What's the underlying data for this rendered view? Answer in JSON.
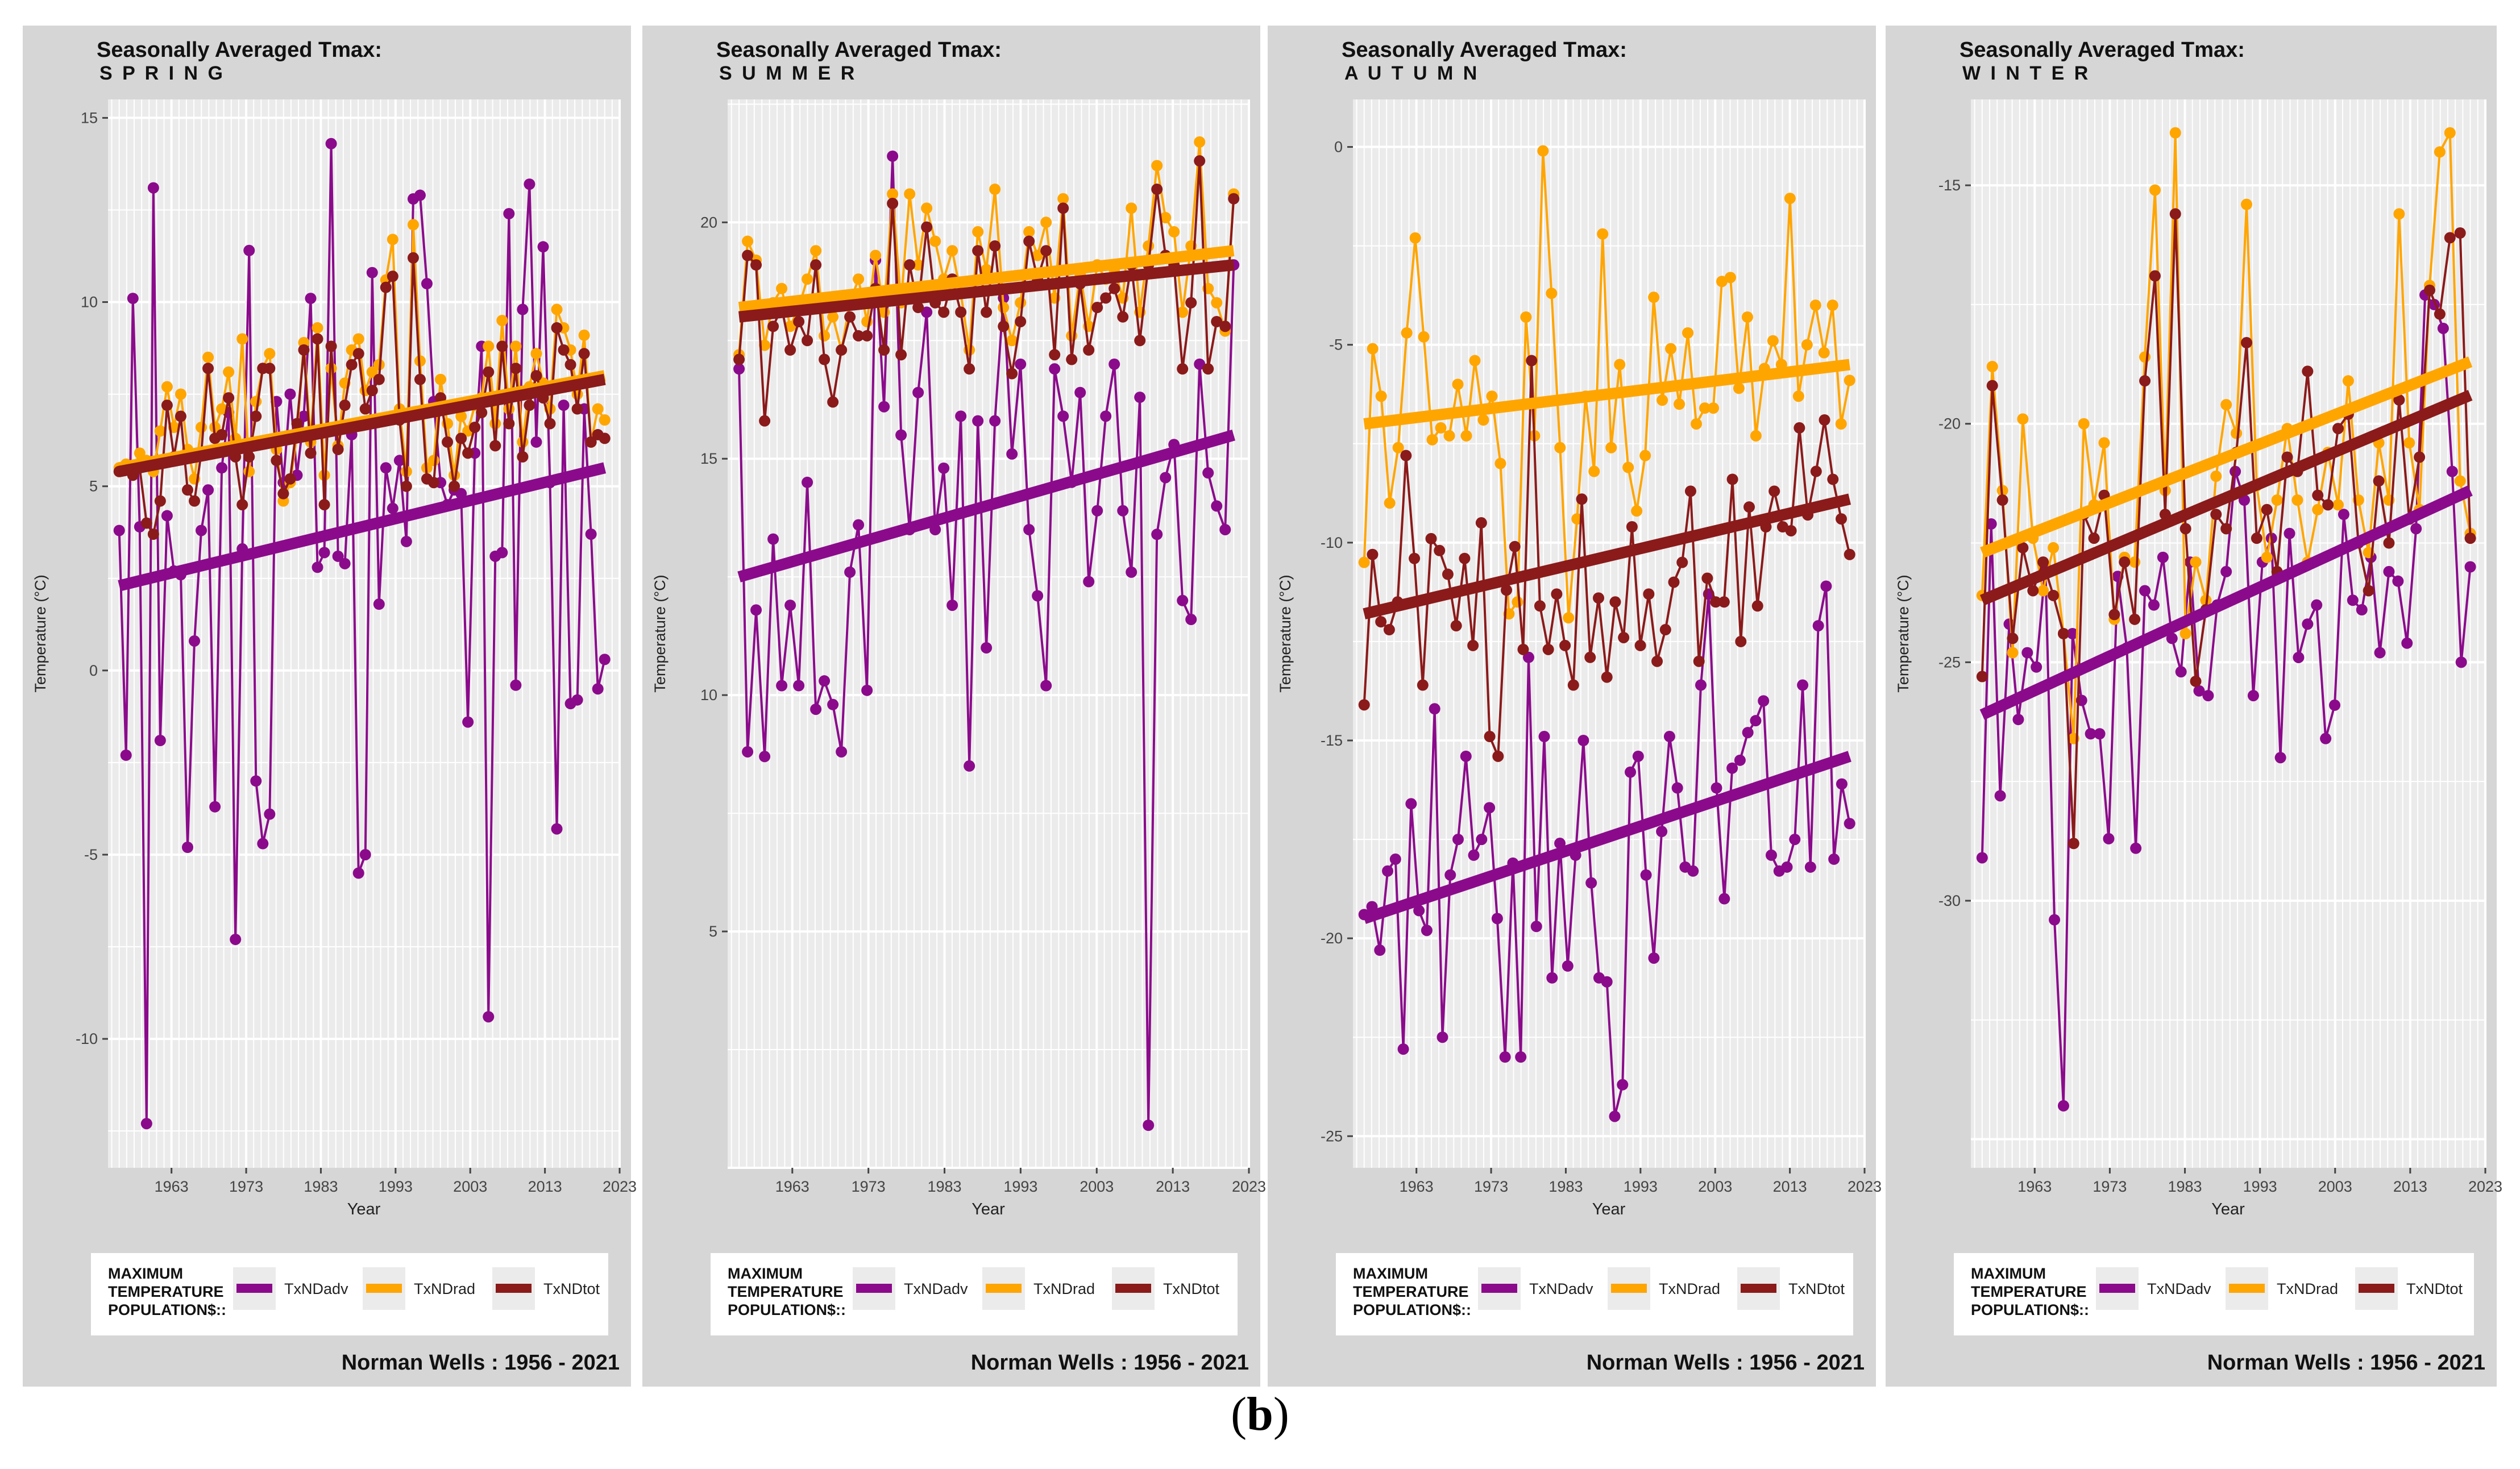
{
  "caption": {
    "open": "(",
    "letter": "b",
    "close": ")"
  },
  "colors": {
    "panel_bg": "#d6d6d6",
    "plot_bg": "#ebebeb",
    "grid": "#ffffff",
    "legend_bg": "#ffffff",
    "TxNDadv": "#8b0a8b",
    "TxNDrad": "#ffa500",
    "TxNDtot": "#8b1a1a"
  },
  "common": {
    "title_line1": "Seasonally Averaged Tmax:",
    "ylabel": "Temperature (°C)",
    "xlabel": "Year",
    "legend_title": [
      "MAXIMUM",
      "TEMPERATURE",
      "POPULATION$::"
    ],
    "legend_entries": [
      "TxNDadv",
      "TxNDrad",
      "TxNDtot"
    ],
    "station_footer": "Norman Wells :  1956 - 2021"
  },
  "chart_data": [
    {
      "type": "line",
      "title": "Seasonally Averaged Tmax:",
      "subtitle": "SPRING",
      "xlabel": "Year",
      "ylabel": "Temperature (°C)",
      "xlim": [
        1954.5,
        2023
      ],
      "ylim": [
        -13.5,
        15.5
      ],
      "x_ticks": [
        "1963",
        "1973",
        "1983",
        "1993",
        "2003",
        "2013",
        "2023"
      ],
      "y_ticks": [
        "15",
        "10",
        "5",
        "0",
        "-5",
        "-10"
      ],
      "y_tick_values": [
        15,
        10,
        5,
        0,
        -5,
        -10
      ],
      "years": [
        1956,
        2021
      ],
      "series": [
        {
          "name": "TxNDadv",
          "values": [
            3.8,
            -2.3,
            10.1,
            3.9,
            -12.3,
            13.1,
            -1.9,
            4.2,
            2.7,
            2.6,
            -4.8,
            0.8,
            3.8,
            4.9,
            -3.7,
            5.5,
            7.0,
            -7.3,
            3.3,
            11.4,
            -3.0,
            -4.7,
            -3.9,
            7.3,
            5.1,
            7.5,
            5.3,
            6.9,
            10.1,
            2.8,
            3.2,
            14.3,
            3.1,
            2.9,
            6.4,
            -5.5,
            -5.0,
            10.8,
            1.8,
            5.5,
            4.4,
            5.7,
            3.5,
            12.8,
            12.9,
            10.5,
            7.3,
            5.1,
            4.5,
            4.9,
            4.8,
            -1.4,
            5.9,
            8.8,
            -9.4,
            3.1,
            3.2,
            12.4,
            -0.4,
            9.8,
            13.2,
            6.2,
            11.5,
            5.1,
            -4.3,
            7.2,
            -0.9,
            -0.8,
            7.1,
            3.7,
            -0.5,
            0.3
          ],
          "trend": [
            2.3,
            5.5
          ]
        },
        {
          "name": "TxNDrad",
          "values": [
            5.5,
            5.6,
            5.4,
            5.9,
            5.7,
            5.4,
            6.5,
            7.7,
            6.6,
            7.5,
            6.0,
            5.2,
            6.6,
            8.5,
            6.6,
            7.1,
            8.1,
            6.3,
            9.0,
            5.4,
            7.3,
            8.2,
            8.6,
            6.0,
            4.6,
            5.1,
            6.4,
            8.9,
            6.2,
            9.3,
            5.3,
            8.2,
            6.1,
            7.8,
            8.7,
            9.0,
            7.6,
            8.1,
            8.3,
            10.6,
            11.7,
            7.1,
            5.4,
            12.1,
            8.4,
            5.5,
            5.7,
            7.9,
            6.7,
            5.3,
            6.9,
            6.5,
            7.2,
            7.4,
            8.8,
            6.7,
            9.5,
            7.1,
            8.8,
            6.2,
            7.7,
            8.6,
            7.8,
            7.1,
            9.8,
            9.3,
            8.7,
            7.5,
            9.1,
            6.2,
            7.1,
            6.8
          ],
          "trend": [
            5.5,
            8.0
          ]
        },
        {
          "name": "TxNDtot",
          "values": [
            5.4,
            5.5,
            5.3,
            5.5,
            4.0,
            3.7,
            4.6,
            7.2,
            5.8,
            6.9,
            4.9,
            4.6,
            5.9,
            8.2,
            6.3,
            6.4,
            7.4,
            5.8,
            4.5,
            5.8,
            6.9,
            8.2,
            8.2,
            5.7,
            4.8,
            5.2,
            6.7,
            8.7,
            5.9,
            9.0,
            4.5,
            8.8,
            6.0,
            7.2,
            8.3,
            8.6,
            7.1,
            7.6,
            7.9,
            10.4,
            10.7,
            6.8,
            5.0,
            11.2,
            7.9,
            5.2,
            5.1,
            7.4,
            6.2,
            5.0,
            6.3,
            5.9,
            6.6,
            7.0,
            8.1,
            6.1,
            8.8,
            6.7,
            8.2,
            5.8,
            7.2,
            8.0,
            7.4,
            6.7,
            9.3,
            8.7,
            8.3,
            7.1,
            8.6,
            6.2,
            6.4,
            6.3
          ],
          "trend": [
            5.4,
            7.9
          ]
        }
      ]
    },
    {
      "type": "line",
      "title": "Seasonally Averaged Tmax:",
      "subtitle": "SUMMER",
      "xlabel": "Year",
      "ylabel": "Temperature (°C)",
      "xlim": [
        1954.5,
        2023
      ],
      "ylim": [
        0,
        22.6
      ],
      "x_ticks": [
        "1963",
        "1973",
        "1983",
        "1993",
        "2003",
        "2013",
        "2023"
      ],
      "y_ticks": [
        "20",
        "15",
        "10",
        "5"
      ],
      "y_tick_values": [
        20,
        15,
        10,
        5
      ],
      "years": [
        1956,
        2021
      ],
      "series": [
        {
          "name": "TxNDadv",
          "values": [
            16.9,
            8.8,
            11.8,
            8.7,
            13.3,
            10.2,
            11.9,
            10.2,
            14.5,
            9.7,
            10.3,
            9.8,
            8.8,
            12.6,
            13.6,
            10.1,
            19.2,
            16.1,
            21.4,
            15.5,
            13.5,
            16.4,
            18.1,
            13.5,
            14.8,
            11.9,
            15.9,
            8.5,
            15.8,
            11.0,
            15.8,
            18.4,
            15.1,
            17.0,
            13.5,
            12.1,
            10.2,
            16.9,
            15.9,
            14.5,
            16.4,
            12.4,
            13.9,
            15.9,
            17.0,
            13.9,
            12.6,
            16.3,
            0.9,
            13.4,
            14.6,
            15.3,
            12.0,
            11.6,
            17.0,
            14.7,
            14.0,
            13.5,
            19.1
          ],
          "trend": [
            12.5,
            15.5
          ]
        },
        {
          "name": "TxNDrad",
          "values": [
            17.2,
            19.6,
            19.2,
            17.4,
            18.3,
            18.6,
            17.8,
            18.2,
            18.8,
            19.4,
            17.6,
            18.0,
            17.3,
            18.3,
            18.8,
            17.9,
            19.3,
            18.1,
            20.6,
            18.3,
            20.6,
            19.1,
            20.3,
            19.6,
            18.8,
            19.4,
            18.5,
            17.3,
            19.8,
            19.0,
            20.7,
            18.2,
            17.5,
            18.3,
            19.8,
            19.3,
            20.0,
            18.4,
            20.5,
            17.6,
            18.9,
            17.8,
            19.1,
            18.8,
            19.0,
            18.4,
            20.3,
            18.1,
            19.5,
            21.2,
            20.1,
            19.8,
            18.1,
            19.5,
            21.7,
            18.6,
            18.3,
            17.7,
            20.6
          ],
          "trend": [
            18.2,
            19.4
          ]
        },
        {
          "name": "TxNDtot",
          "values": [
            17.1,
            19.3,
            19.1,
            15.8,
            17.8,
            18.2,
            17.3,
            17.9,
            17.5,
            19.1,
            17.1,
            16.2,
            17.3,
            18.0,
            17.6,
            17.6,
            18.6,
            17.3,
            20.4,
            17.2,
            19.1,
            18.2,
            19.9,
            18.3,
            18.1,
            18.8,
            18.1,
            16.9,
            19.4,
            18.1,
            19.5,
            17.8,
            16.8,
            17.9,
            19.6,
            18.8,
            19.4,
            17.2,
            20.3,
            17.1,
            18.7,
            17.3,
            18.2,
            18.4,
            18.6,
            18.0,
            19.1,
            17.5,
            19.1,
            20.7,
            19.3,
            19.1,
            16.9,
            18.3,
            21.3,
            16.9,
            17.9,
            17.8,
            20.5
          ],
          "trend": [
            18.0,
            19.1
          ]
        }
      ]
    },
    {
      "type": "line",
      "title": "Seasonally Averaged Tmax:",
      "subtitle": "AUTUMN",
      "xlabel": "Year",
      "ylabel": "Temperature (°C)",
      "xlim": [
        1954.5,
        2023
      ],
      "ylim": [
        -25.8,
        1.2
      ],
      "x_ticks": [
        "1963",
        "1973",
        "1983",
        "1993",
        "2003",
        "2013",
        "2023"
      ],
      "y_ticks": [
        "0",
        "-5",
        "-10",
        "-15",
        "-20",
        "-25"
      ],
      "y_tick_values": [
        0,
        -5,
        -10,
        -15,
        -20,
        -25
      ],
      "years": [
        1956,
        2021
      ],
      "series": [
        {
          "name": "TxNDadv",
          "values": [
            -19.4,
            -19.2,
            -20.3,
            -18.3,
            -18.0,
            -22.8,
            -16.6,
            -19.3,
            -19.8,
            -14.2,
            -22.5,
            -18.4,
            -17.5,
            -15.4,
            -17.9,
            -17.5,
            -16.7,
            -19.5,
            -23.0,
            -18.1,
            -23.0,
            -12.9,
            -19.7,
            -14.9,
            -21.0,
            -17.6,
            -20.7,
            -17.9,
            -15.0,
            -18.6,
            -21.0,
            -21.1,
            -24.5,
            -23.7,
            -15.8,
            -15.4,
            -18.4,
            -20.5,
            -17.3,
            -14.9,
            -16.2,
            -18.2,
            -18.3,
            -13.6,
            -11.3,
            -16.2,
            -19.0,
            -15.7,
            -15.5,
            -14.8,
            -14.5,
            -14.0,
            -17.9,
            -18.3,
            -18.2,
            -17.5,
            -13.6,
            -18.2,
            -12.1,
            -11.1,
            -18.0,
            -16.1,
            -17.1
          ],
          "trend": [
            -19.5,
            -15.4
          ]
        },
        {
          "name": "TxNDrad",
          "values": [
            -10.5,
            -5.1,
            -6.3,
            -9.0,
            -7.6,
            -4.7,
            -2.3,
            -4.8,
            -7.4,
            -7.1,
            -7.3,
            -6.0,
            -7.3,
            -5.4,
            -6.9,
            -6.3,
            -8.0,
            -11.8,
            -11.5,
            -4.3,
            -7.3,
            -0.1,
            -3.7,
            -7.6,
            -11.9,
            -9.4,
            -6.3,
            -8.2,
            -2.2,
            -7.6,
            -5.5,
            -8.1,
            -9.2,
            -7.8,
            -3.8,
            -6.4,
            -5.1,
            -6.5,
            -4.7,
            -7.0,
            -6.6,
            -6.6,
            -3.4,
            -3.3,
            -6.1,
            -4.3,
            -7.3,
            -5.6,
            -4.9,
            -5.5,
            -1.3,
            -6.3,
            -5.0,
            -4.0,
            -5.2,
            -4.0,
            -7.0,
            -5.9
          ],
          "trend": [
            -7.0,
            -5.5
          ]
        },
        {
          "name": "TxNDtot",
          "values": [
            -14.1,
            -10.3,
            -12.0,
            -12.2,
            -11.5,
            -7.8,
            -10.4,
            -13.6,
            -9.9,
            -10.2,
            -10.8,
            -12.1,
            -10.4,
            -12.6,
            -9.5,
            -14.9,
            -15.4,
            -11.2,
            -10.1,
            -12.7,
            -5.4,
            -11.6,
            -12.7,
            -11.3,
            -12.6,
            -13.6,
            -8.9,
            -12.9,
            -11.4,
            -13.4,
            -11.5,
            -12.4,
            -9.6,
            -12.6,
            -11.3,
            -13.0,
            -12.2,
            -11.0,
            -10.5,
            -8.7,
            -13.0,
            -10.9,
            -11.5,
            -11.5,
            -8.4,
            -12.5,
            -9.1,
            -11.6,
            -9.6,
            -8.7,
            -9.6,
            -9.7,
            -7.1,
            -9.3,
            -8.2,
            -6.9,
            -8.4,
            -9.4,
            -10.3
          ],
          "trend": [
            -11.8,
            -8.9
          ]
        }
      ]
    },
    {
      "type": "line",
      "title": "Seasonally Averaged Tmax:",
      "subtitle": "WINTER",
      "xlabel": "Year",
      "ylabel": "Temperature (°C)",
      "xlim": [
        1954.5,
        2023
      ],
      "ylim": [
        -35.6,
        -13.2
      ],
      "x_ticks": [
        "1963",
        "1973",
        "1983",
        "1993",
        "2003",
        "2013",
        "2023"
      ],
      "y_ticks": [
        "-15",
        "-20",
        "-25",
        "-30"
      ],
      "y_tick_values": [
        -15,
        -20,
        -25,
        -30
      ],
      "years": [
        1956,
        2021
      ],
      "series": [
        {
          "name": "TxNDadv",
          "values": [
            -29.1,
            -22.1,
            -27.8,
            -24.2,
            -26.2,
            -24.8,
            -25.1,
            -23.0,
            -30.4,
            -34.3,
            -24.4,
            -25.8,
            -26.5,
            -26.5,
            -28.7,
            -23.2,
            -24.7,
            -28.9,
            -23.5,
            -23.8,
            -22.8,
            -24.5,
            -25.2,
            -22.9,
            -25.6,
            -25.7,
            -23.8,
            -23.1,
            -21.0,
            -21.6,
            -25.7,
            -22.9,
            -22.4,
            -27.0,
            -22.3,
            -24.9,
            -24.2,
            -23.8,
            -26.6,
            -25.9,
            -21.9,
            -23.7,
            -23.9,
            -22.8,
            -24.8,
            -23.1,
            -23.3,
            -24.6,
            -22.2,
            -17.3,
            -17.5,
            -18.0,
            -21.0,
            -25.0,
            -23.0
          ],
          "trend": [
            -26.1,
            -21.4
          ]
        },
        {
          "name": "TxNDrad",
          "values": [
            -23.6,
            -18.8,
            -21.4,
            -24.8,
            -19.9,
            -22.4,
            -23.5,
            -22.6,
            -24.4,
            -26.6,
            -20.0,
            -21.7,
            -20.4,
            -24.1,
            -22.8,
            -22.9,
            -18.6,
            -15.1,
            -21.4,
            -13.9,
            -24.4,
            -22.9,
            -23.7,
            -21.1,
            -19.6,
            -20.2,
            -15.4,
            -21.3,
            -22.8,
            -21.6,
            -20.1,
            -21.6,
            -22.9,
            -21.8,
            -20.6,
            -21.7,
            -19.1,
            -21.6,
            -22.7,
            -20.4,
            -21.6,
            -15.6,
            -20.4,
            -21.8,
            -17.1,
            -14.3,
            -13.9,
            -21.2,
            -22.3
          ],
          "trend": [
            -22.7,
            -18.7
          ]
        },
        {
          "name": "TxNDtot",
          "values": [
            -25.3,
            -19.2,
            -21.6,
            -24.5,
            -22.6,
            -23.5,
            -22.9,
            -23.6,
            -24.4,
            -28.8,
            -21.9,
            -22.4,
            -21.5,
            -24.0,
            -22.9,
            -24.1,
            -19.1,
            -16.9,
            -21.9,
            -15.6,
            -22.2,
            -25.4,
            -23.9,
            -21.9,
            -22.2,
            -20.6,
            -18.3,
            -22.4,
            -21.8,
            -23.1,
            -20.7,
            -21.0,
            -18.9,
            -21.5,
            -21.7,
            -20.1,
            -19.8,
            -22.5,
            -23.5,
            -21.2,
            -22.5,
            -19.5,
            -22.0,
            -20.7,
            -17.2,
            -17.7,
            -16.1,
            -16.0,
            -22.4
          ],
          "trend": [
            -23.7,
            -19.4
          ]
        }
      ]
    }
  ]
}
